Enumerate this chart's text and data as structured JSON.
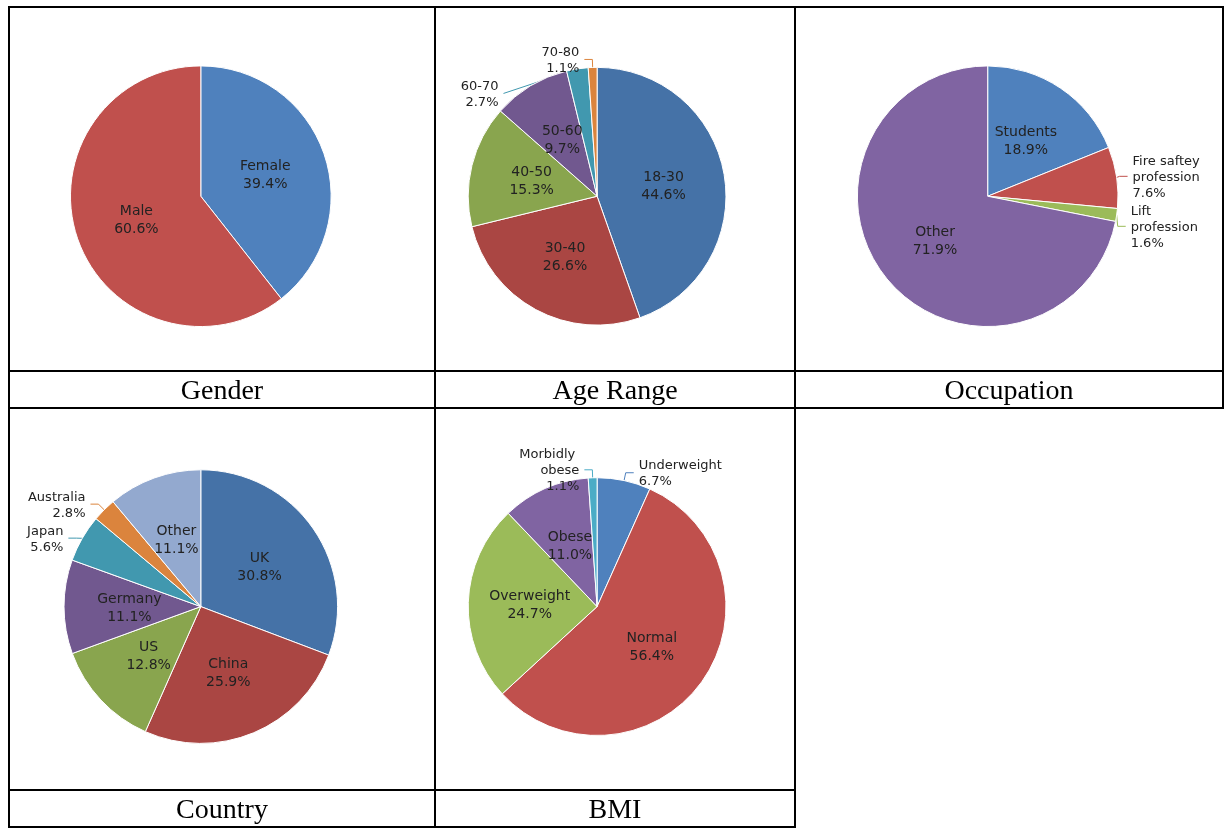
{
  "chart_data": [
    {
      "type": "pie",
      "title": "Gender",
      "categories": [
        "Female",
        "Male"
      ],
      "values": [
        39.4,
        60.6
      ],
      "value_labels": [
        "39.4%",
        "60.6%"
      ],
      "colors": [
        "#4f81bd",
        "#c0504d"
      ],
      "legend": false
    },
    {
      "type": "pie",
      "title": "Age Range",
      "categories": [
        "18-30",
        "30-40",
        "40-50",
        "50-60",
        "60-70",
        "70-80"
      ],
      "values": [
        44.6,
        26.6,
        15.3,
        9.7,
        2.7,
        1.1
      ],
      "value_labels": [
        "44.6%",
        "26.6%",
        "15.3%",
        "9.7%",
        "2.7%",
        "1.1%"
      ],
      "colors": [
        "#4572a7",
        "#aa4643",
        "#89a54e",
        "#71588f",
        "#4198af",
        "#db843d"
      ],
      "legend": false
    },
    {
      "type": "pie",
      "title": "Occupation",
      "categories": [
        "Students",
        "Fire saftey profession",
        "Lift profession",
        "Other"
      ],
      "values": [
        18.9,
        7.6,
        1.6,
        71.9
      ],
      "value_labels": [
        "18.9%",
        "7.6%",
        "1.6%",
        "71.9%"
      ],
      "colors": [
        "#4f81bd",
        "#c0504d",
        "#9bbb59",
        "#8064a2"
      ],
      "legend": false
    },
    {
      "type": "pie",
      "title": "Country",
      "categories": [
        "UK",
        "China",
        "US",
        "Germany",
        "Japan",
        "Australia",
        "Other"
      ],
      "values": [
        30.8,
        25.9,
        12.8,
        11.1,
        5.6,
        2.8,
        11.1
      ],
      "value_labels": [
        "30.8%",
        "25.9%",
        "12.8%",
        "11.1%",
        "5.6%",
        "2.8%",
        "11.1%"
      ],
      "colors": [
        "#4572a7",
        "#aa4643",
        "#89a54e",
        "#71588f",
        "#4198af",
        "#db843d",
        "#93a9cf"
      ],
      "legend": false
    },
    {
      "type": "pie",
      "title": "BMI",
      "categories": [
        "Underweight",
        "Normal",
        "Overweight",
        "Obese",
        "Morbidly obese"
      ],
      "values": [
        6.7,
        56.4,
        24.7,
        11.0,
        1.1
      ],
      "value_labels": [
        "6.7%",
        "56.4%",
        "24.7%",
        "11.0%",
        "1.1%"
      ],
      "colors": [
        "#4f81bd",
        "#c0504d",
        "#9bbb59",
        "#8064a2",
        "#4bacc6"
      ],
      "legend": false
    }
  ]
}
